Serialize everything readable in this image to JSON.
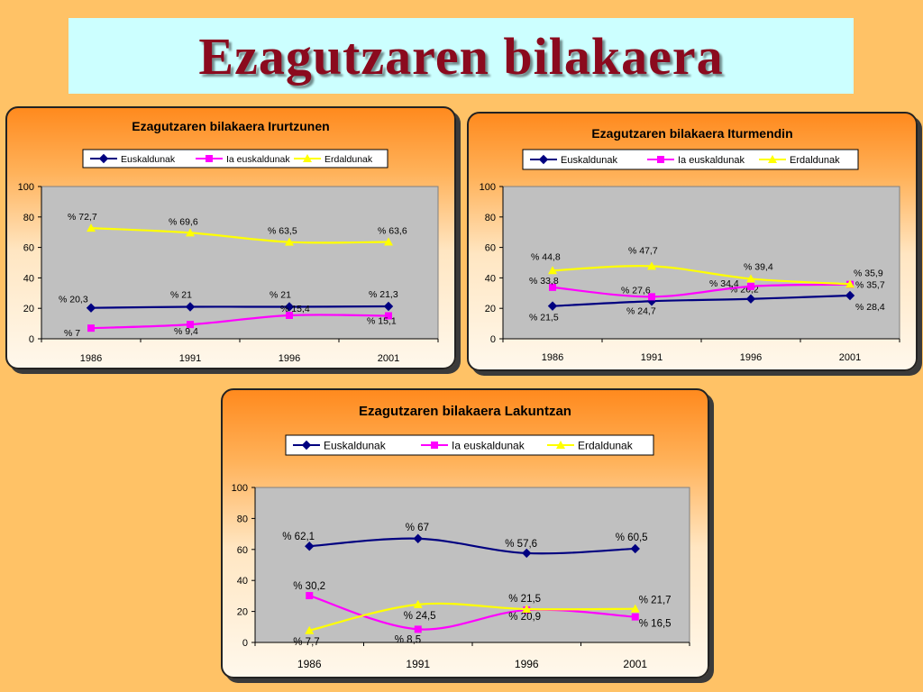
{
  "page": {
    "title": "Ezagutzaren bilakaera"
  },
  "colors": {
    "euskaldunak": "#000080",
    "ia_euskaldunak": "#FF00FF",
    "erdaldunak": "#FFFF00",
    "plot_bg": "#C0C0C0"
  },
  "chart_data": [
    {
      "type": "line",
      "title": "Ezagutzaren bilakaera Irurtzunen",
      "categories": [
        "1986",
        "1991",
        "1996",
        "2001"
      ],
      "ylim": [
        0,
        100
      ],
      "yticks": [
        "0",
        "20",
        "40",
        "60",
        "80",
        "100"
      ],
      "legend": "top",
      "grid": false,
      "series": [
        {
          "name": "Euskaldunak",
          "values": [
            20.3,
            21,
            21,
            21.3
          ],
          "labels": [
            "% 20,3",
            "% 21",
            "% 21",
            "% 21,3"
          ]
        },
        {
          "name": "Ia euskaldunak",
          "values": [
            7,
            9.4,
            15.4,
            15.1
          ],
          "labels": [
            "% 7",
            "% 9,4",
            "% 15,4",
            "% 15,1"
          ]
        },
        {
          "name": "Erdaldunak",
          "values": [
            72.7,
            69.6,
            63.5,
            63.6
          ],
          "labels": [
            "% 72,7",
            "% 69,6",
            "% 63,5",
            "% 63,6"
          ]
        }
      ]
    },
    {
      "type": "line",
      "title": "Ezagutzaren bilakaera Iturmendin",
      "categories": [
        "1986",
        "1991",
        "1996",
        "2001"
      ],
      "ylim": [
        0,
        100
      ],
      "yticks": [
        "0",
        "20",
        "40",
        "60",
        "80",
        "100"
      ],
      "legend": "top",
      "grid": false,
      "series": [
        {
          "name": "Euskaldunak",
          "values": [
            21.5,
            24.7,
            26.2,
            28.4
          ],
          "labels": [
            "% 21,5",
            "% 24,7",
            "% 26,2",
            "% 28,4"
          ]
        },
        {
          "name": "Ia euskaldunak",
          "values": [
            33.8,
            27.6,
            34.4,
            35.7
          ],
          "labels": [
            "% 33,8",
            "% 27,6",
            "% 34,4",
            "% 35,7"
          ]
        },
        {
          "name": "Erdaldunak",
          "values": [
            44.8,
            47.7,
            39.4,
            35.9
          ],
          "labels": [
            "% 44,8",
            "% 47,7",
            "% 39,4",
            "% 35,9"
          ]
        }
      ]
    },
    {
      "type": "line",
      "title": "Ezagutzaren bilakaera Lakuntzan",
      "categories": [
        "1986",
        "1991",
        "1996",
        "2001"
      ],
      "ylim": [
        0,
        100
      ],
      "yticks": [
        "0",
        "20",
        "40",
        "60",
        "80",
        "100"
      ],
      "legend": "top",
      "grid": false,
      "series": [
        {
          "name": "Euskaldunak",
          "values": [
            62.1,
            67,
            57.6,
            60.5
          ],
          "labels": [
            "% 62,1",
            "% 67",
            "% 57,6",
            "% 60,5"
          ]
        },
        {
          "name": "Ia euskaldunak",
          "values": [
            30.2,
            8.5,
            20.9,
            16.5
          ],
          "labels": [
            "% 30,2",
            "% 8,5",
            "% 20,9",
            "% 16,5"
          ]
        },
        {
          "name": "Erdaldunak",
          "values": [
            7.7,
            24.5,
            21.5,
            21.7
          ],
          "labels": [
            "% 7,7",
            "% 24,5",
            "% 21,5",
            "% 21,7"
          ]
        }
      ]
    }
  ]
}
